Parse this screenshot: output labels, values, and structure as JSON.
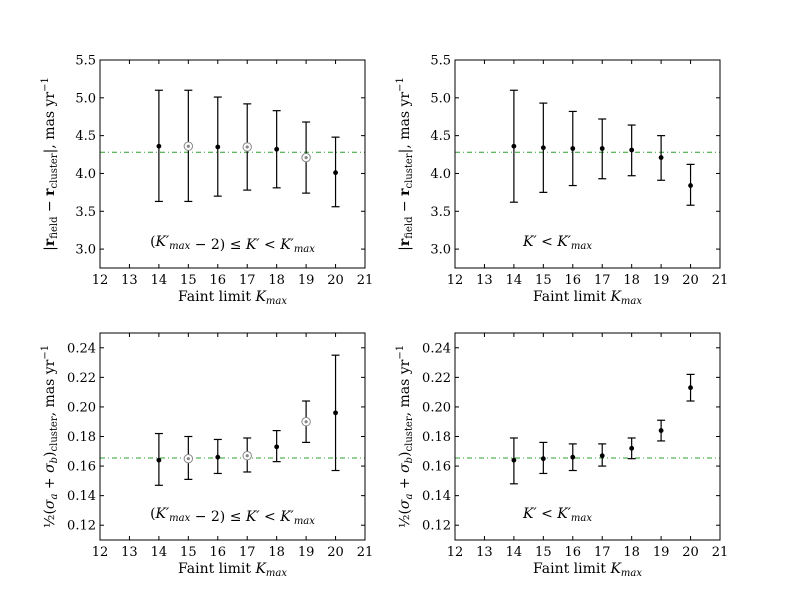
{
  "chart_data": [
    {
      "type": "scatter",
      "panel": "top-left",
      "xlabel": "Faint limit K_max",
      "ylabel": "|r_field − r_cluster|,  mas yr⁻¹",
      "xlim": [
        12,
        21
      ],
      "ylim": [
        2.75,
        5.5
      ],
      "xticks": [
        "12",
        "13",
        "14",
        "15",
        "16",
        "17",
        "18",
        "19",
        "20",
        "21"
      ],
      "yticks": [
        "3.0",
        "3.5",
        "4.0",
        "4.5",
        "5.0",
        "5.5"
      ],
      "annotation": "(K'max − 2) ≤ K' < K'max",
      "reference_line": 4.28,
      "reference_color": "#2ca02c",
      "series": [
        {
          "x": [
            14,
            15,
            16,
            17,
            18,
            19,
            20
          ],
          "y": [
            4.36,
            4.36,
            4.35,
            4.35,
            4.32,
            4.21,
            4.01
          ],
          "yerr_low": [
            3.63,
            3.63,
            3.7,
            3.78,
            3.81,
            3.74,
            3.56
          ],
          "yerr_high": [
            5.1,
            5.1,
            5.01,
            4.92,
            4.83,
            4.68,
            4.48
          ],
          "ringed": [
            false,
            true,
            false,
            true,
            false,
            true,
            false
          ]
        }
      ]
    },
    {
      "type": "scatter",
      "panel": "top-right",
      "xlabel": "Faint limit K_max",
      "ylabel": "|r_field − r_cluster|,  mas yr⁻¹",
      "xlim": [
        12,
        21
      ],
      "ylim": [
        2.75,
        5.5
      ],
      "xticks": [
        "12",
        "13",
        "14",
        "15",
        "16",
        "17",
        "18",
        "19",
        "20",
        "21"
      ],
      "yticks": [
        "3.0",
        "3.5",
        "4.0",
        "4.5",
        "5.0",
        "5.5"
      ],
      "annotation": "K' < K'max",
      "reference_line": 4.28,
      "reference_color": "#2ca02c",
      "series": [
        {
          "x": [
            14,
            15,
            16,
            17,
            18,
            19,
            20
          ],
          "y": [
            4.36,
            4.34,
            4.33,
            4.33,
            4.31,
            4.21,
            3.84
          ],
          "yerr_low": [
            3.62,
            3.75,
            3.84,
            3.93,
            3.97,
            3.91,
            3.58
          ],
          "yerr_high": [
            5.1,
            4.93,
            4.82,
            4.72,
            4.64,
            4.5,
            4.12
          ],
          "ringed": [
            false,
            false,
            false,
            false,
            false,
            false,
            false
          ]
        }
      ]
    },
    {
      "type": "scatter",
      "panel": "bottom-left",
      "xlabel": "Faint limit K_max",
      "ylabel": "½(σa + σb)cluster,  mas yr⁻¹",
      "xlim": [
        12,
        21
      ],
      "ylim": [
        0.11,
        0.25
      ],
      "xticks": [
        "12",
        "13",
        "14",
        "15",
        "16",
        "17",
        "18",
        "19",
        "20",
        "21"
      ],
      "yticks": [
        "0.12",
        "0.14",
        "0.16",
        "0.18",
        "0.20",
        "0.22",
        "0.24"
      ],
      "annotation": "(K'max − 2) ≤ K' < K'max",
      "reference_line": 0.1655,
      "reference_color": "#2ca02c",
      "series": [
        {
          "x": [
            14,
            15,
            16,
            17,
            18,
            19,
            20
          ],
          "y": [
            0.164,
            0.165,
            0.166,
            0.167,
            0.173,
            0.19,
            0.196
          ],
          "yerr_low": [
            0.147,
            0.151,
            0.155,
            0.156,
            0.163,
            0.176,
            0.157
          ],
          "yerr_high": [
            0.182,
            0.18,
            0.178,
            0.179,
            0.184,
            0.204,
            0.235
          ],
          "ringed": [
            false,
            true,
            false,
            true,
            false,
            true,
            false
          ]
        }
      ]
    },
    {
      "type": "scatter",
      "panel": "bottom-right",
      "xlabel": "Faint limit K_max",
      "ylabel": "½(σa + σb)cluster,  mas yr⁻¹",
      "xlim": [
        12,
        21
      ],
      "ylim": [
        0.11,
        0.25
      ],
      "xticks": [
        "12",
        "13",
        "14",
        "15",
        "16",
        "17",
        "18",
        "19",
        "20",
        "21"
      ],
      "yticks": [
        "0.12",
        "0.14",
        "0.16",
        "0.18",
        "0.20",
        "0.22",
        "0.24"
      ],
      "annotation": "K' < K'max",
      "reference_line": 0.1655,
      "reference_color": "#2ca02c",
      "series": [
        {
          "x": [
            14,
            15,
            16,
            17,
            18,
            19,
            20
          ],
          "y": [
            0.164,
            0.165,
            0.166,
            0.167,
            0.172,
            0.184,
            0.213
          ],
          "yerr_low": [
            0.148,
            0.155,
            0.157,
            0.16,
            0.165,
            0.177,
            0.204
          ],
          "yerr_high": [
            0.179,
            0.176,
            0.175,
            0.175,
            0.179,
            0.191,
            0.222
          ],
          "ringed": [
            false,
            false,
            false,
            false,
            false,
            false,
            false
          ]
        }
      ]
    }
  ]
}
